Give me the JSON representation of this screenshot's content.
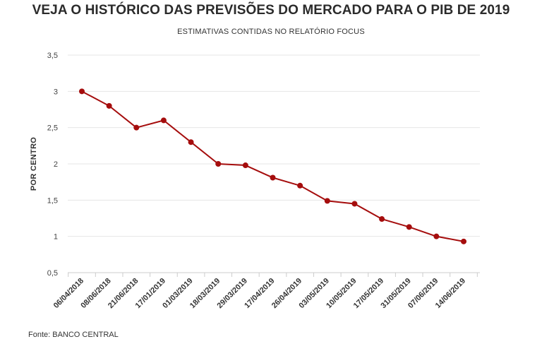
{
  "header": {
    "title": "VEJA O HISTÓRICO DAS PREVISÕES DO MERCADO PARA O PIB DE 2019",
    "subtitle": "ESTIMATIVAS CONTIDAS NO RELATÓRIO FOCUS"
  },
  "footer": {
    "source": "Fonte: BANCO CENTRAL"
  },
  "colors": {
    "series": "#a50d0d",
    "grid": "#e6e6e6",
    "axis": "#cccccc"
  },
  "chart_data": {
    "type": "line",
    "title": "VEJA O HISTÓRICO DAS PREVISÕES DO MERCADO PARA O PIB DE 2019",
    "subtitle": "ESTIMATIVAS CONTIDAS NO RELATÓRIO FOCUS",
    "xlabel": "",
    "ylabel": "POR CENTRO",
    "ylim": [
      0.5,
      3.5
    ],
    "yticks": [
      "0,5",
      "1",
      "1,5",
      "2",
      "2,5",
      "3",
      "3,5"
    ],
    "categories": [
      "06/04/2018",
      "08/06/2018",
      "21/06/2018",
      "17/01/2019",
      "01/03/2019",
      "18/03/2019",
      "29/03/2019",
      "17/04/2019",
      "26/04/2019",
      "03/05/2019",
      "10/05/2019",
      "17/05/2019",
      "31/05/2019",
      "07/06/2019",
      "14/06/2019"
    ],
    "series": [
      {
        "values": [
          3.0,
          2.8,
          2.5,
          2.6,
          2.3,
          2.0,
          1.98,
          1.81,
          1.7,
          1.49,
          1.45,
          1.24,
          1.13,
          1.0,
          0.93
        ]
      }
    ],
    "grid": true,
    "legend": "none"
  }
}
